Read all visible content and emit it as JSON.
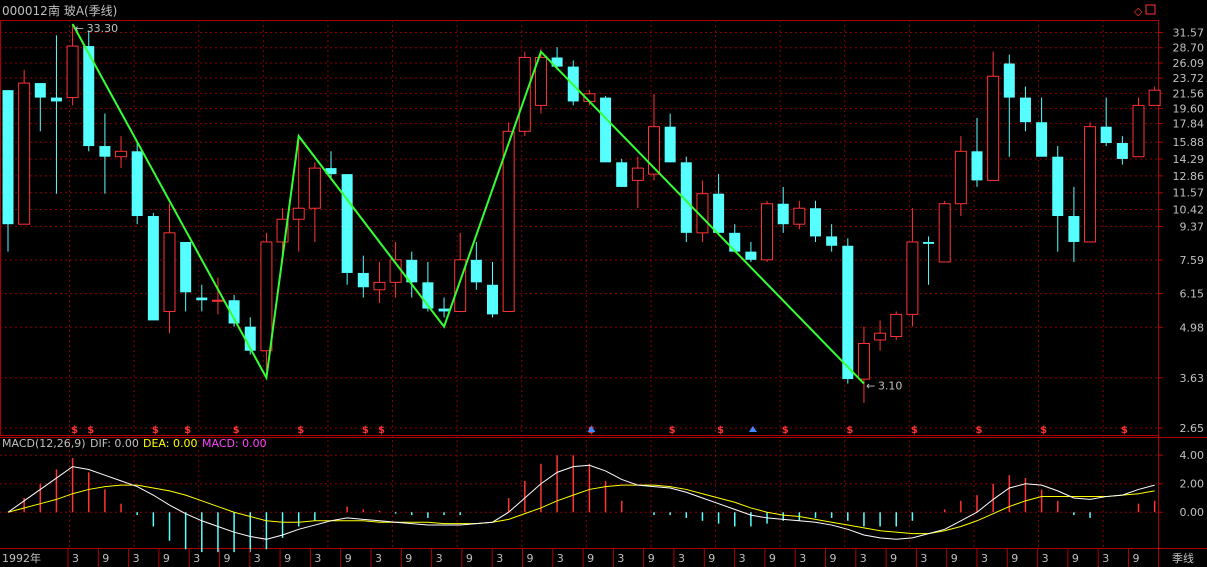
{
  "header": {
    "code": "000012",
    "name": "南 玻A",
    "period": "(季线)",
    "title_color": "#c0c0c0"
  },
  "colors": {
    "up": "#ff3333",
    "down": "#55ffff",
    "zigzag": "#33ff33",
    "grid": "#8b0000",
    "frame": "#b00000",
    "axis_text": "#c0c0c0",
    "dif": "#ffffff",
    "dea": "#ffff00",
    "macd": "#ff44ff"
  },
  "price_axis": {
    "ticks": [
      "31.57",
      "28.70",
      "26.09",
      "23.72",
      "21.56",
      "19.60",
      "17.84",
      "15.88",
      "14.29",
      "12.86",
      "11.57",
      "10.42",
      "9.37",
      "7.59",
      "6.15",
      "4.98",
      "3.63",
      "2.65"
    ]
  },
  "macd_panel": {
    "label": "MACD(12,26,9)",
    "dif_label": "DIF: 0.00",
    "dea_label": "DEA: 0.00",
    "macd_label": "MACD: 0.00",
    "ticks": [
      "4.00",
      "2.00",
      "0.00"
    ]
  },
  "time_axis": {
    "year_label": "1992年",
    "quarter_labels": [
      "3",
      "9",
      "3",
      "9",
      "3",
      "9",
      "3",
      "9",
      "3",
      "9",
      "3",
      "9",
      "3",
      "9",
      "3",
      "9",
      "3",
      "9",
      "3",
      "9",
      "3",
      "9",
      "3",
      "9",
      "3",
      "9",
      "3",
      "9",
      "3",
      "9",
      "3",
      "9",
      "3",
      "9",
      "3",
      "9",
      "3"
    ],
    "period_label": "季线"
  },
  "annotations": {
    "high_label": "33.30",
    "low_label": "3.10",
    "window_icons": [
      "◇",
      "🗗"
    ]
  },
  "chart_data": {
    "type": "candlestick",
    "log_scale": true,
    "ylim": [
      2.65,
      33.3
    ],
    "candles": [
      {
        "o": 22,
        "h": 22,
        "l": 8,
        "c": 9.5
      },
      {
        "o": 9.5,
        "h": 25,
        "l": 9.5,
        "c": 23
      },
      {
        "o": 23,
        "h": 23,
        "l": 17,
        "c": 21
      },
      {
        "o": 21,
        "h": 31,
        "l": 11.5,
        "c": 20.5
      },
      {
        "o": 21,
        "h": 33.3,
        "l": 20,
        "c": 29
      },
      {
        "o": 29,
        "h": 32,
        "l": 15,
        "c": 15.5
      },
      {
        "o": 15.5,
        "h": 19,
        "l": 11.5,
        "c": 14.5
      },
      {
        "o": 14.5,
        "h": 16.5,
        "l": 13.5,
        "c": 15
      },
      {
        "o": 15,
        "h": 16,
        "l": 9.5,
        "c": 10
      },
      {
        "o": 10,
        "h": 10.2,
        "l": 5.5,
        "c": 5.2
      },
      {
        "o": 5.5,
        "h": 10.8,
        "l": 4.8,
        "c": 9.0
      },
      {
        "o": 8.5,
        "h": 8.5,
        "l": 5.5,
        "c": 6.2
      },
      {
        "o": 6.0,
        "h": 6.5,
        "l": 5.5,
        "c": 5.9
      },
      {
        "o": 5.9,
        "h": 6.8,
        "l": 5.4,
        "c": 5.9
      },
      {
        "o": 5.9,
        "h": 6.1,
        "l": 5.0,
        "c": 5.1
      },
      {
        "o": 5.0,
        "h": 5.3,
        "l": 4.2,
        "c": 4.3
      },
      {
        "o": 4.3,
        "h": 9.0,
        "l": 3.8,
        "c": 8.5
      },
      {
        "o": 8.5,
        "h": 10.5,
        "l": 7.5,
        "c": 9.8
      },
      {
        "o": 9.8,
        "h": 16.0,
        "l": 8.0,
        "c": 10.5
      },
      {
        "o": 10.5,
        "h": 14.0,
        "l": 8.5,
        "c": 13.5
      },
      {
        "o": 13.5,
        "h": 15.0,
        "l": 12.5,
        "c": 13.0
      },
      {
        "o": 13.0,
        "h": 13.0,
        "l": 6.5,
        "c": 7.0
      },
      {
        "o": 7.0,
        "h": 7.8,
        "l": 6.0,
        "c": 6.4
      },
      {
        "o": 6.3,
        "h": 7.5,
        "l": 5.8,
        "c": 6.6
      },
      {
        "o": 6.6,
        "h": 8.5,
        "l": 6.0,
        "c": 7.6
      },
      {
        "o": 7.6,
        "h": 8.0,
        "l": 6.0,
        "c": 6.6
      },
      {
        "o": 6.6,
        "h": 7.5,
        "l": 5.5,
        "c": 5.6
      },
      {
        "o": 5.6,
        "h": 6.0,
        "l": 5.3,
        "c": 5.5
      },
      {
        "o": 5.5,
        "h": 9.0,
        "l": 5.5,
        "c": 7.6
      },
      {
        "o": 7.6,
        "h": 8.5,
        "l": 6.3,
        "c": 6.6
      },
      {
        "o": 6.5,
        "h": 7.5,
        "l": 5.3,
        "c": 5.4
      },
      {
        "o": 5.5,
        "h": 18.0,
        "l": 5.5,
        "c": 17.0
      },
      {
        "o": 17.0,
        "h": 28.0,
        "l": 16.5,
        "c": 27.0
      },
      {
        "o": 20.0,
        "h": 28.5,
        "l": 19.0,
        "c": 27.0
      },
      {
        "o": 27.0,
        "h": 28.8,
        "l": 25.0,
        "c": 25.5
      },
      {
        "o": 25.5,
        "h": 26.5,
        "l": 20.0,
        "c": 20.5
      },
      {
        "o": 20.5,
        "h": 22.0,
        "l": 20.0,
        "c": 21.5
      },
      {
        "o": 21.0,
        "h": 21.2,
        "l": 14.0,
        "c": 14.0
      },
      {
        "o": 14.0,
        "h": 14.3,
        "l": 12.0,
        "c": 12.0
      },
      {
        "o": 12.5,
        "h": 14.5,
        "l": 10.5,
        "c": 13.5
      },
      {
        "o": 13.0,
        "h": 21.5,
        "l": 12.5,
        "c": 17.5
      },
      {
        "o": 17.5,
        "h": 19.0,
        "l": 14.0,
        "c": 14.0
      },
      {
        "o": 14.0,
        "h": 14.5,
        "l": 8.5,
        "c": 9.0
      },
      {
        "o": 9.0,
        "h": 12.5,
        "l": 8.5,
        "c": 11.5
      },
      {
        "o": 11.5,
        "h": 13.0,
        "l": 9.0,
        "c": 9.0
      },
      {
        "o": 9.0,
        "h": 9.5,
        "l": 8.0,
        "c": 8.0
      },
      {
        "o": 8.0,
        "h": 8.5,
        "l": 7.5,
        "c": 7.6
      },
      {
        "o": 7.6,
        "h": 11.0,
        "l": 7.5,
        "c": 10.8
      },
      {
        "o": 10.8,
        "h": 12.0,
        "l": 9.0,
        "c": 9.5
      },
      {
        "o": 9.5,
        "h": 11.0,
        "l": 9.2,
        "c": 10.5
      },
      {
        "o": 10.5,
        "h": 11.0,
        "l": 8.5,
        "c": 8.8
      },
      {
        "o": 8.8,
        "h": 9.5,
        "l": 8.0,
        "c": 8.3
      },
      {
        "o": 8.3,
        "h": 8.7,
        "l": 3.5,
        "c": 3.6
      },
      {
        "o": 3.6,
        "h": 5.0,
        "l": 3.1,
        "c": 4.5
      },
      {
        "o": 4.6,
        "h": 5.2,
        "l": 4.3,
        "c": 4.8
      },
      {
        "o": 4.7,
        "h": 5.5,
        "l": 4.6,
        "c": 5.4
      },
      {
        "o": 5.4,
        "h": 10.5,
        "l": 5.0,
        "c": 8.5
      },
      {
        "o": 8.5,
        "h": 8.8,
        "l": 6.5,
        "c": 8.4
      },
      {
        "o": 7.5,
        "h": 11.0,
        "l": 7.5,
        "c": 10.8
      },
      {
        "o": 10.8,
        "h": 16.5,
        "l": 10.0,
        "c": 15.0
      },
      {
        "o": 15.0,
        "h": 18.5,
        "l": 12.0,
        "c": 12.5
      },
      {
        "o": 12.5,
        "h": 28.0,
        "l": 12.5,
        "c": 24.0
      },
      {
        "o": 26.0,
        "h": 27.5,
        "l": 14.5,
        "c": 21.0
      },
      {
        "o": 21.0,
        "h": 22.5,
        "l": 17.0,
        "c": 18.0
      },
      {
        "o": 18.0,
        "h": 21.0,
        "l": 14.5,
        "c": 14.5
      },
      {
        "o": 14.5,
        "h": 15.5,
        "l": 8.0,
        "c": 10.0
      },
      {
        "o": 10.0,
        "h": 12.0,
        "l": 7.5,
        "c": 8.5
      },
      {
        "o": 8.5,
        "h": 18.0,
        "l": 8.5,
        "c": 17.5
      },
      {
        "o": 17.5,
        "h": 21.0,
        "l": 15.5,
        "c": 15.8
      },
      {
        "o": 15.8,
        "h": 16.5,
        "l": 13.8,
        "c": 14.3
      },
      {
        "o": 14.5,
        "h": 21.0,
        "l": 14.5,
        "c": 20.0
      },
      {
        "o": 20.0,
        "h": 22.5,
        "l": 20.0,
        "c": 22.0
      }
    ],
    "zigzag": [
      {
        "i": 4,
        "v": 33.3
      },
      {
        "i": 16,
        "v": 3.63
      },
      {
        "i": 18,
        "v": 16.5
      },
      {
        "i": 27,
        "v": 5.0
      },
      {
        "i": 33,
        "v": 28.0
      },
      {
        "i": 53,
        "v": 3.5
      }
    ],
    "signals": [
      {
        "i": 4,
        "type": "s"
      },
      {
        "i": 5,
        "type": "s"
      },
      {
        "i": 9,
        "type": "s"
      },
      {
        "i": 11,
        "type": "s"
      },
      {
        "i": 14,
        "type": "s"
      },
      {
        "i": 18,
        "type": "s"
      },
      {
        "i": 22,
        "type": "s"
      },
      {
        "i": 23,
        "type": "s"
      },
      {
        "i": 36,
        "type": "sb"
      },
      {
        "i": 41,
        "type": "s"
      },
      {
        "i": 44,
        "type": "s"
      },
      {
        "i": 46,
        "type": "b"
      },
      {
        "i": 48,
        "type": "s"
      },
      {
        "i": 52,
        "type": "s"
      },
      {
        "i": 56,
        "type": "s"
      },
      {
        "i": 60,
        "type": "s"
      },
      {
        "i": 64,
        "type": "s"
      },
      {
        "i": 69,
        "type": "s"
      }
    ],
    "macd": {
      "ylim": [
        -2.3,
        5.0
      ],
      "dif": [
        0,
        0.8,
        1.6,
        2.4,
        3.2,
        3.0,
        2.6,
        2.2,
        1.8,
        1.2,
        0.5,
        -0.1,
        -0.6,
        -1.0,
        -1.4,
        -1.7,
        -1.9,
        -1.6,
        -1.2,
        -0.9,
        -0.6,
        -0.4,
        -0.5,
        -0.6,
        -0.7,
        -0.8,
        -0.9,
        -0.9,
        -0.9,
        -0.8,
        -0.7,
        0.0,
        1.0,
        2.0,
        2.8,
        3.2,
        3.3,
        2.9,
        2.3,
        1.9,
        1.8,
        1.7,
        1.4,
        1.0,
        0.6,
        0.2,
        -0.2,
        -0.4,
        -0.5,
        -0.6,
        -0.7,
        -0.9,
        -1.2,
        -1.6,
        -1.8,
        -1.9,
        -1.8,
        -1.5,
        -1.2,
        -0.6,
        0.0,
        0.9,
        1.7,
        2.0,
        1.9,
        1.5,
        1.0,
        0.9,
        1.1,
        1.2,
        1.6,
        1.9
      ],
      "dea": [
        0,
        0.3,
        0.6,
        0.9,
        1.3,
        1.6,
        1.8,
        1.9,
        1.9,
        1.7,
        1.5,
        1.2,
        0.8,
        0.4,
        0.0,
        -0.3,
        -0.6,
        -0.7,
        -0.7,
        -0.6,
        -0.6,
        -0.6,
        -0.6,
        -0.7,
        -0.7,
        -0.7,
        -0.7,
        -0.8,
        -0.8,
        -0.8,
        -0.7,
        -0.5,
        -0.1,
        0.3,
        0.8,
        1.2,
        1.6,
        1.8,
        1.9,
        1.9,
        1.9,
        1.8,
        1.6,
        1.3,
        1.0,
        0.7,
        0.3,
        0.0,
        -0.2,
        -0.3,
        -0.5,
        -0.7,
        -0.9,
        -1.1,
        -1.3,
        -1.4,
        -1.5,
        -1.5,
        -1.3,
        -1.0,
        -0.6,
        -0.1,
        0.4,
        0.8,
        1.1,
        1.1,
        1.1,
        1.1,
        1.1,
        1.2,
        1.3,
        1.5
      ],
      "bars": [
        0,
        1.0,
        2.0,
        3.0,
        3.8,
        2.8,
        1.6,
        0.6,
        -0.2,
        -1.0,
        -2.0,
        -2.6,
        -2.8,
        -2.8,
        -2.8,
        -2.8,
        -2.6,
        -1.8,
        -1.0,
        -0.6,
        0,
        0.4,
        0.2,
        0.1,
        -0.1,
        -0.2,
        -0.4,
        -0.2,
        -0.2,
        0,
        0,
        1.0,
        2.2,
        3.4,
        4.0,
        4.0,
        3.4,
        2.2,
        0.8,
        0,
        -0.2,
        -0.2,
        -0.4,
        -0.6,
        -0.8,
        -1.0,
        -1.0,
        -0.8,
        -0.6,
        -0.6,
        -0.4,
        -0.4,
        -0.6,
        -1.0,
        -1.0,
        -1.0,
        -0.6,
        0,
        0.2,
        0.8,
        1.2,
        2.0,
        2.6,
        2.4,
        1.6,
        0.8,
        -0.2,
        -0.4,
        0,
        0,
        0.6,
        0.8
      ]
    }
  }
}
